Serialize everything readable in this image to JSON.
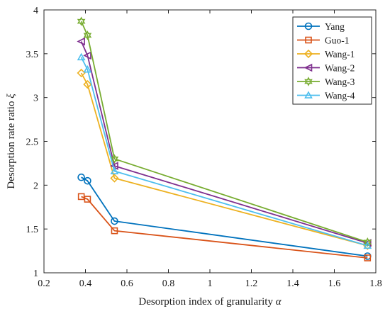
{
  "chart_data": {
    "type": "line",
    "xlabel": "Desorption index of granularity",
    "xlabel_symbol": "α",
    "ylabel": "Desorption rate ratio",
    "ylabel_symbol": "ξ",
    "xlim": [
      0.2,
      1.8
    ],
    "ylim": [
      1,
      4
    ],
    "xticks": [
      "0.2",
      "0.4",
      "0.6",
      "0.8",
      "1",
      "1.2",
      "1.4",
      "1.6",
      "1.8"
    ],
    "yticks": [
      "1",
      "1.5",
      "2",
      "2.5",
      "3",
      "3.5",
      "4"
    ],
    "grid": false,
    "legend_position": "top-right",
    "series": [
      {
        "name": "Yang",
        "color": "#0072BD",
        "marker": "circle",
        "x": [
          0.38,
          0.41,
          0.54,
          1.76
        ],
        "y": [
          2.09,
          2.05,
          1.59,
          1.19
        ]
      },
      {
        "name": "Guo-1",
        "color": "#D95319",
        "marker": "square",
        "x": [
          0.38,
          0.41,
          0.54,
          1.76
        ],
        "y": [
          1.87,
          1.84,
          1.48,
          1.17
        ]
      },
      {
        "name": "Wang-1",
        "color": "#EDB120",
        "marker": "diamond",
        "x": [
          0.38,
          0.41,
          0.54,
          1.76
        ],
        "y": [
          3.28,
          3.15,
          2.08,
          1.31
        ]
      },
      {
        "name": "Wang-2",
        "color": "#7E2F8E",
        "marker": "triangle-left",
        "x": [
          0.38,
          0.41,
          0.54,
          1.76
        ],
        "y": [
          3.64,
          3.48,
          2.22,
          1.34
        ]
      },
      {
        "name": "Wang-3",
        "color": "#77AC30",
        "marker": "hexagram",
        "x": [
          0.38,
          0.41,
          0.54,
          1.76
        ],
        "y": [
          3.87,
          3.71,
          2.3,
          1.35
        ]
      },
      {
        "name": "Wang-4",
        "color": "#4DBEEE",
        "marker": "triangle-up",
        "x": [
          0.38,
          0.41,
          0.54,
          1.76
        ],
        "y": [
          3.46,
          3.32,
          2.16,
          1.31
        ]
      }
    ]
  }
}
